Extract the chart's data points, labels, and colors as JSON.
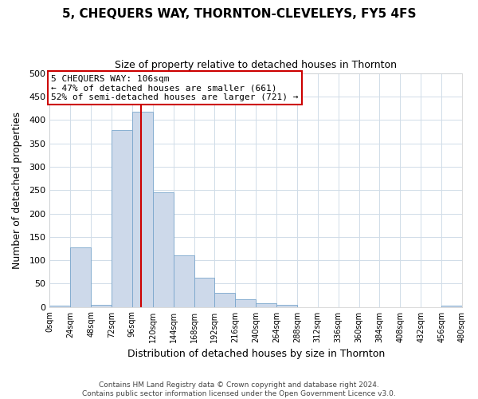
{
  "title": "5, CHEQUERS WAY, THORNTON-CLEVELEYS, FY5 4FS",
  "subtitle": "Size of property relative to detached houses in Thornton",
  "xlabel": "Distribution of detached houses by size in Thornton",
  "ylabel": "Number of detached properties",
  "bar_color": "#cdd9ea",
  "bar_edge_color": "#7aa6cc",
  "bin_edges": [
    0,
    24,
    48,
    72,
    96,
    120,
    144,
    168,
    192,
    216,
    240,
    264,
    288,
    312,
    336,
    360,
    384,
    408,
    432,
    456,
    480
  ],
  "bar_heights": [
    3,
    128,
    5,
    378,
    418,
    245,
    110,
    63,
    30,
    16,
    7,
    5,
    0,
    0,
    0,
    0,
    0,
    0,
    0,
    3
  ],
  "ylim": [
    0,
    500
  ],
  "yticks": [
    0,
    50,
    100,
    150,
    200,
    250,
    300,
    350,
    400,
    450,
    500
  ],
  "xtick_labels": [
    "0sqm",
    "24sqm",
    "48sqm",
    "72sqm",
    "96sqm",
    "120sqm",
    "144sqm",
    "168sqm",
    "192sqm",
    "216sqm",
    "240sqm",
    "264sqm",
    "288sqm",
    "312sqm",
    "336sqm",
    "360sqm",
    "384sqm",
    "408sqm",
    "432sqm",
    "456sqm",
    "480sqm"
  ],
  "vline_x": 106,
  "vline_color": "#cc0000",
  "annotation_title": "5 CHEQUERS WAY: 106sqm",
  "annotation_line1": "← 47% of detached houses are smaller (661)",
  "annotation_line2": "52% of semi-detached houses are larger (721) →",
  "annotation_box_color": "#ffffff",
  "annotation_box_edge_color": "#cc0000",
  "footer_line1": "Contains HM Land Registry data © Crown copyright and database right 2024.",
  "footer_line2": "Contains public sector information licensed under the Open Government Licence v3.0.",
  "background_color": "#ffffff",
  "grid_color": "#d0dce8"
}
